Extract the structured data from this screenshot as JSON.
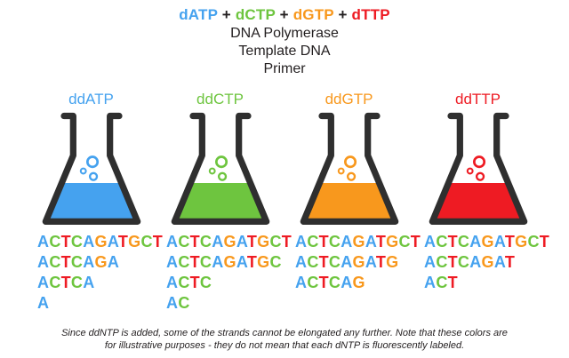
{
  "header": {
    "dntp_parts": [
      {
        "text": "dATP",
        "color": "#45A2EF"
      },
      {
        "text": " + ",
        "color": "#231F20"
      },
      {
        "text": "dCTP",
        "color": "#6EC53F"
      },
      {
        "text": " + ",
        "color": "#231F20"
      },
      {
        "text": "dGTP",
        "color": "#F8981D"
      },
      {
        "text": " + ",
        "color": "#231F20"
      },
      {
        "text": "dTTP",
        "color": "#EE1B23"
      }
    ],
    "lines": [
      "DNA Polymerase",
      "Template DNA",
      "Primer"
    ]
  },
  "base_colors": {
    "A": "#45A2EF",
    "C": "#6EC53F",
    "G": "#F8981D",
    "T": "#EE1B23"
  },
  "outline_color": "#2F2F2F",
  "flasks": [
    {
      "label": "ddATP",
      "color": "#45A2EF",
      "sequences": [
        "ACTCAGATGCT",
        "ACTCAGA",
        "ACTCA",
        "A"
      ]
    },
    {
      "label": "ddCTP",
      "color": "#6EC53F",
      "sequences": [
        "ACTCAGATGCT",
        "ACTCAGATGC",
        "ACTC",
        "AC"
      ]
    },
    {
      "label": "ddGTP",
      "color": "#F8981D",
      "sequences": [
        "ACTCAGATGCT",
        "ACTCAGATG",
        "ACTCAG"
      ]
    },
    {
      "label": "ddTTP",
      "color": "#EE1B23",
      "sequences": [
        "ACTCAGATGCT",
        "ACTCAGAT",
        "ACT"
      ]
    }
  ],
  "footnote": {
    "line1": "Since ddNTP is added, some of the strands cannot be elongated any further. Note that these colors are",
    "line2": "for illustrative purposes - they do not mean that each dNTP is fluorescently labeled."
  }
}
